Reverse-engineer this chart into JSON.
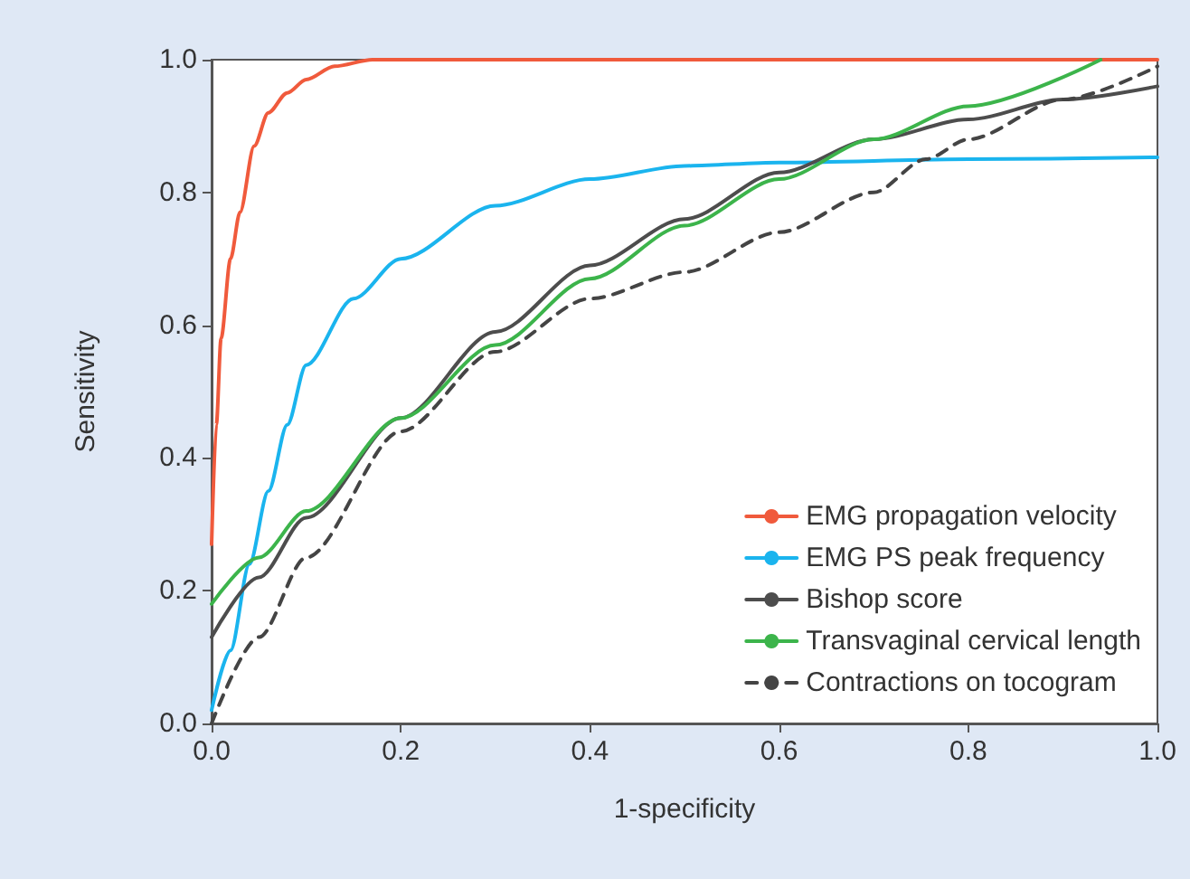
{
  "chart_data": {
    "type": "line",
    "xlabel": "1-specificity",
    "ylabel": "Sensitivity",
    "xlim": [
      0,
      1
    ],
    "ylim": [
      0,
      1
    ],
    "xticks": [
      {
        "value": 0,
        "label": "0.0"
      },
      {
        "value": 0.2,
        "label": "0.2"
      },
      {
        "value": 0.4,
        "label": "0.4"
      },
      {
        "value": 0.6,
        "label": "0.6"
      },
      {
        "value": 0.8,
        "label": "0.8"
      },
      {
        "value": 1,
        "label": "1.0"
      }
    ],
    "yticks": [
      {
        "value": 0,
        "label": "0.0"
      },
      {
        "value": 0.2,
        "label": "0.2"
      },
      {
        "value": 0.4,
        "label": "0.4"
      },
      {
        "value": 0.6,
        "label": "0.6"
      },
      {
        "value": 0.8,
        "label": "0.8"
      },
      {
        "value": 1,
        "label": "1.0"
      }
    ],
    "grid": false,
    "legend": "bottom right",
    "marker": "none",
    "series": [
      {
        "name": "EMG propagation velocity",
        "color": "#f05a3c",
        "line_style": "solid",
        "x": [
          0,
          0.005,
          0.01,
          0.02,
          0.03,
          0.045,
          0.06,
          0.08,
          0.1,
          0.13,
          0.17,
          0.25,
          1
        ],
        "values": [
          0.27,
          0.45,
          0.58,
          0.7,
          0.77,
          0.87,
          0.92,
          0.95,
          0.97,
          0.99,
          1,
          1,
          1
        ]
      },
      {
        "name": "EMG PS peak frequency",
        "color": "#1ab4ee",
        "line_style": "solid",
        "x": [
          0,
          0.02,
          0.04,
          0.06,
          0.08,
          0.1,
          0.15,
          0.2,
          0.3,
          0.4,
          0.5,
          0.6,
          0.8,
          1
        ],
        "values": [
          0.02,
          0.11,
          0.24,
          0.35,
          0.45,
          0.54,
          0.64,
          0.7,
          0.78,
          0.82,
          0.84,
          0.845,
          0.85,
          0.853
        ]
      },
      {
        "name": "Bishop score",
        "color": "#4d4d4d",
        "line_style": "solid",
        "x": [
          0,
          0.05,
          0.1,
          0.2,
          0.3,
          0.4,
          0.5,
          0.6,
          0.7,
          0.8,
          0.9,
          1
        ],
        "values": [
          0.13,
          0.22,
          0.31,
          0.46,
          0.59,
          0.69,
          0.76,
          0.83,
          0.88,
          0.91,
          0.94,
          0.96
        ]
      },
      {
        "name": "Transvaginal cervical length",
        "color": "#3cb44b",
        "line_style": "solid",
        "x": [
          0,
          0.05,
          0.1,
          0.2,
          0.3,
          0.4,
          0.5,
          0.6,
          0.7,
          0.8,
          0.94
        ],
        "values": [
          0.18,
          0.25,
          0.32,
          0.46,
          0.57,
          0.67,
          0.75,
          0.82,
          0.88,
          0.93,
          1
        ]
      },
      {
        "name": "Contractions on tocogram",
        "color": "#444444",
        "line_style": "dashed",
        "x": [
          0,
          0.05,
          0.1,
          0.2,
          0.3,
          0.4,
          0.5,
          0.6,
          0.7,
          0.755,
          0.8,
          0.9,
          1
        ],
        "values": [
          0,
          0.13,
          0.25,
          0.44,
          0.56,
          0.64,
          0.68,
          0.74,
          0.8,
          0.85,
          0.88,
          0.94,
          0.99
        ]
      }
    ]
  }
}
